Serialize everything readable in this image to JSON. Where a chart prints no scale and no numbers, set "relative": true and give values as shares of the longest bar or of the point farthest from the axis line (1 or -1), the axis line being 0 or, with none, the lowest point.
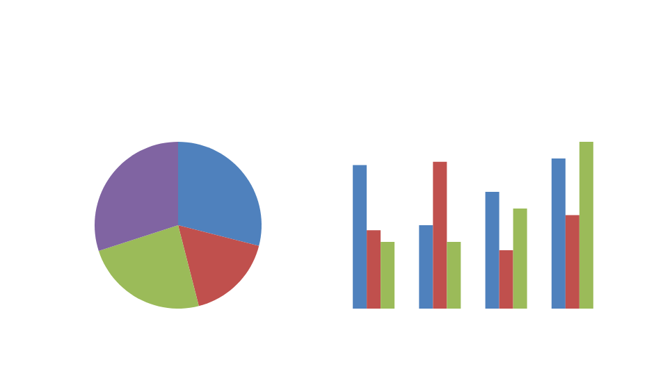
{
  "chart_data": [
    {
      "type": "pie",
      "categories": [
        null,
        null,
        null,
        null
      ],
      "values": [
        29,
        17,
        24,
        30
      ],
      "colors": [
        "#4f81bd",
        "#c0504d",
        "#9bbb59",
        "#8064a2"
      ]
    },
    {
      "type": "bar",
      "relative": true,
      "categories": [
        null,
        null,
        null,
        null
      ],
      "series": [
        {
          "color": "#4f81bd",
          "values": [
            0.86,
            0.5,
            0.7,
            0.9
          ]
        },
        {
          "color": "#c0504d",
          "values": [
            0.47,
            0.88,
            0.35,
            0.56
          ]
        },
        {
          "color": "#9bbb59",
          "values": [
            0.4,
            0.4,
            0.6,
            1
          ]
        }
      ]
    }
  ]
}
